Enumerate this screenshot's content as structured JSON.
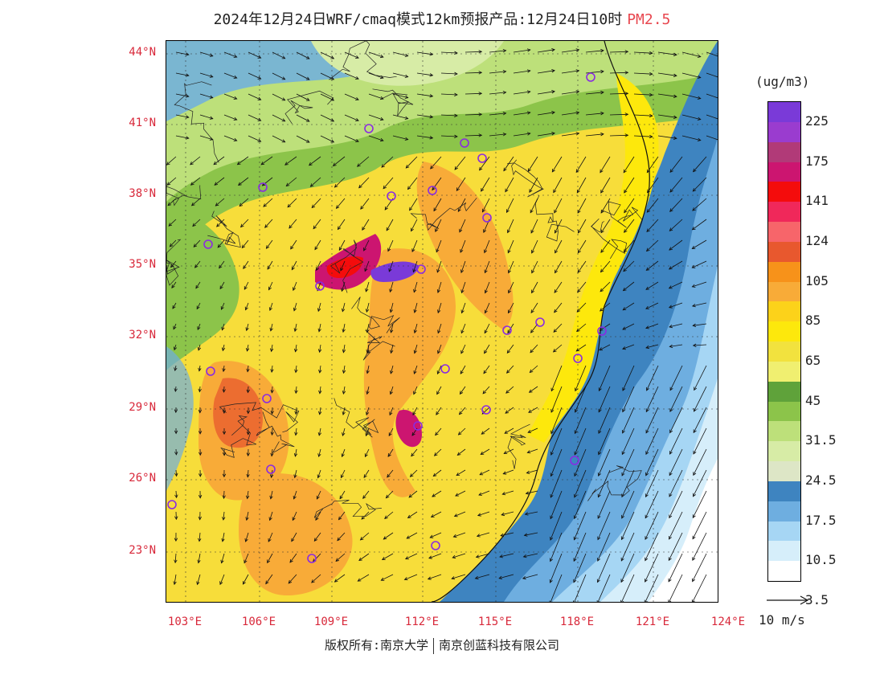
{
  "title": {
    "main": "2024年12月24日WRF/cmaq模式12km预报产品:12月24日10时",
    "variable": "PM2.5"
  },
  "latitude_labels": [
    "44°N",
    "41°N",
    "38°N",
    "35°N",
    "32°N",
    "29°N",
    "26°N",
    "23°N"
  ],
  "longitude_labels": [
    "103°E",
    "106°E",
    "109°E",
    "112°E",
    "115°E",
    "118°E",
    "121°E",
    "124°E"
  ],
  "legend": {
    "unit": "(ug/m3)",
    "labels": [
      "225",
      "175",
      "141",
      "124",
      "105",
      "85",
      "65",
      "45",
      "31.5",
      "24.5",
      "17.5",
      "10.5",
      "3.5"
    ],
    "colors": [
      "#7a3ad8",
      "#9a3ccf",
      "#b13a78",
      "#cc1570",
      "#f40c0c",
      "#f0285a",
      "#f7656a",
      "#e8582e",
      "#f7921a",
      "#f8ab38",
      "#fcd21a",
      "#fde80c",
      "#f2e23e",
      "#f0ef70",
      "#5fa23a",
      "#8cc44a",
      "#bde07a",
      "#d7eca6",
      "#dde6c6",
      "#3e84c0",
      "#6eaee0",
      "#a6d6f4",
      "#d6eefa",
      "#ffffff"
    ]
  },
  "wind_reference": {
    "label": "10 m/s"
  },
  "copyright": {
    "left": "版权所有:南京大学",
    "right": "南京创蓝科技有限公司"
  }
}
